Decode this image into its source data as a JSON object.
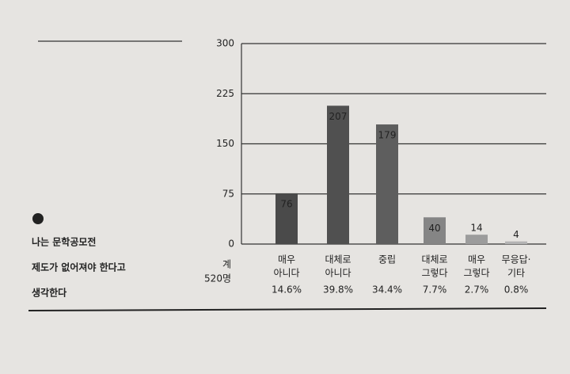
{
  "chart_data": {
    "type": "bar",
    "title": [
      "나는 문학공모전",
      "제도가 없어져야 한다고",
      "생각한다"
    ],
    "total_label": [
      "계",
      "520명"
    ],
    "categories": [
      [
        "매우",
        "아니다"
      ],
      [
        "대체로",
        "아니다"
      ],
      [
        "중립"
      ],
      [
        "대체로",
        "그렇다"
      ],
      [
        "매우",
        "그렇다"
      ],
      [
        "무응답·",
        "기타"
      ]
    ],
    "values": [
      76,
      207,
      179,
      40,
      14,
      4
    ],
    "percent_labels": [
      "14.6%",
      "39.8%",
      "34.4%",
      "7.7%",
      "2.7%",
      "0.8%"
    ],
    "colors": [
      "#4a4a4a",
      "#505050",
      "#5e5e5e",
      "#858585",
      "#9c9c9c",
      "#b4b4b4"
    ],
    "ylim": [
      0,
      300
    ],
    "yticks": [
      0,
      75,
      150,
      225,
      300
    ],
    "grid": true
  }
}
